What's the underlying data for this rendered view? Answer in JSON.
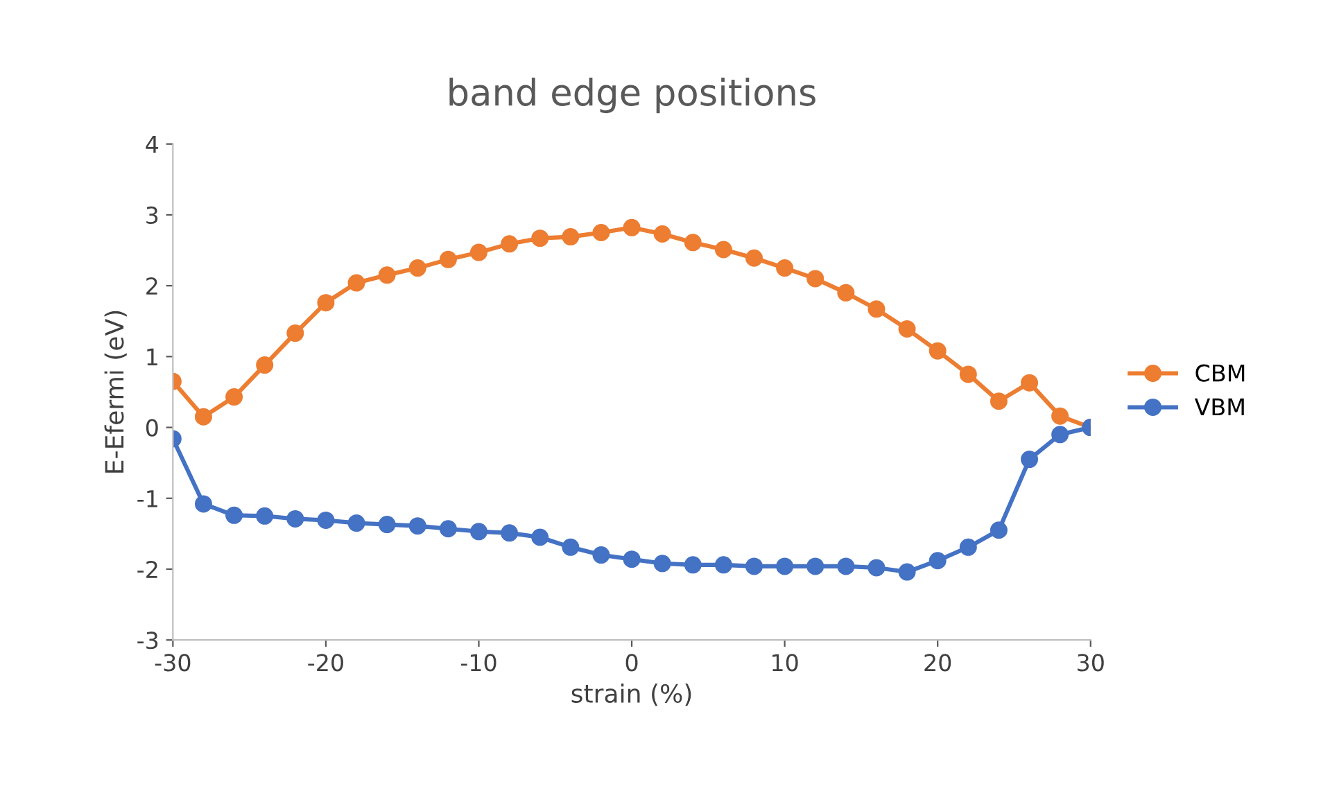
{
  "chart_data": {
    "type": "line",
    "title": "band edge positions",
    "xlabel": "strain (%)",
    "ylabel": "E-Efermi (eV)",
    "x": [
      -30,
      -28,
      -26,
      -24,
      -22,
      -20,
      -18,
      -16,
      -14,
      -12,
      -10,
      -8,
      -6,
      -4,
      -2,
      0,
      2,
      4,
      6,
      8,
      10,
      12,
      14,
      16,
      18,
      20,
      22,
      24,
      26,
      28,
      30
    ],
    "series": [
      {
        "name": "CBM",
        "color": "#ed7d31",
        "values": [
          0.65,
          0.15,
          0.43,
          0.88,
          1.33,
          1.76,
          2.04,
          2.15,
          2.25,
          2.37,
          2.47,
          2.59,
          2.67,
          2.69,
          2.75,
          2.82,
          2.73,
          2.61,
          2.51,
          2.39,
          2.25,
          2.1,
          1.9,
          1.67,
          1.39,
          1.08,
          0.75,
          0.37,
          0.63,
          0.16,
          0
        ]
      },
      {
        "name": "VBM",
        "color": "#4472c4",
        "values": [
          -0.16,
          -1.08,
          -1.24,
          -1.25,
          -1.29,
          -1.31,
          -1.35,
          -1.37,
          -1.39,
          -1.43,
          -1.47,
          -1.49,
          -1.55,
          -1.69,
          -1.8,
          -1.86,
          -1.92,
          -1.94,
          -1.94,
          -1.96,
          -1.96,
          -1.96,
          -1.96,
          -1.98,
          -2.04,
          -1.88,
          -1.69,
          -1.45,
          -0.45,
          -0.1,
          0
        ]
      }
    ],
    "xlim": [
      -30,
      30
    ],
    "xticks": [
      -30,
      -20,
      -10,
      0,
      10,
      20,
      30
    ],
    "ylim": [
      -3,
      4
    ],
    "yticks": [
      -3,
      -2,
      -1,
      0,
      1,
      2,
      3,
      4
    ],
    "grid": false,
    "legend": "right",
    "marker": "circle",
    "line_style": "solid"
  }
}
